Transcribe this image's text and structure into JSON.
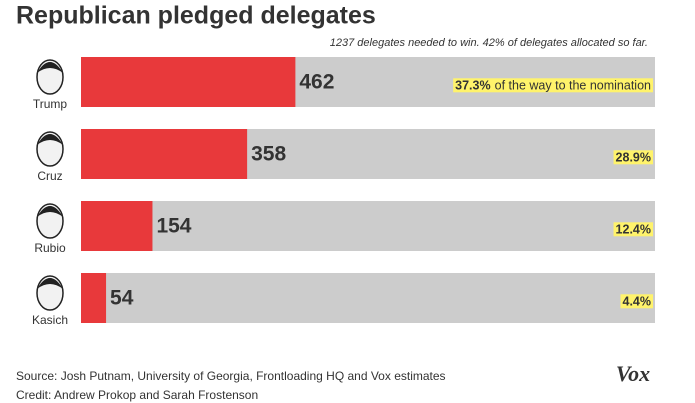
{
  "chart_data": {
    "type": "bar",
    "orientation": "horizontal",
    "title": "Republican pledged delegates",
    "subtitle": "1237 delegates needed to win. 42% of delegates allocated so far.",
    "categories": [
      "Trump",
      "Cruz",
      "Rubio",
      "Kasich"
    ],
    "values": [
      462,
      358,
      154,
      54
    ],
    "share_labels": [
      "37.3%",
      "28.9%",
      "12.4%",
      "4.4%"
    ],
    "annotation": "of the way to the nomination",
    "color": "#e8393b",
    "background_color": "#cccccc",
    "xlim": [
      0,
      1237
    ],
    "source": "Source: Josh Putnam, University of Georgia, Frontloading HQ and Vox estimates",
    "credit": "Credit: Andrew Prokop and Sarah Frostenson",
    "logo": "Vox"
  }
}
